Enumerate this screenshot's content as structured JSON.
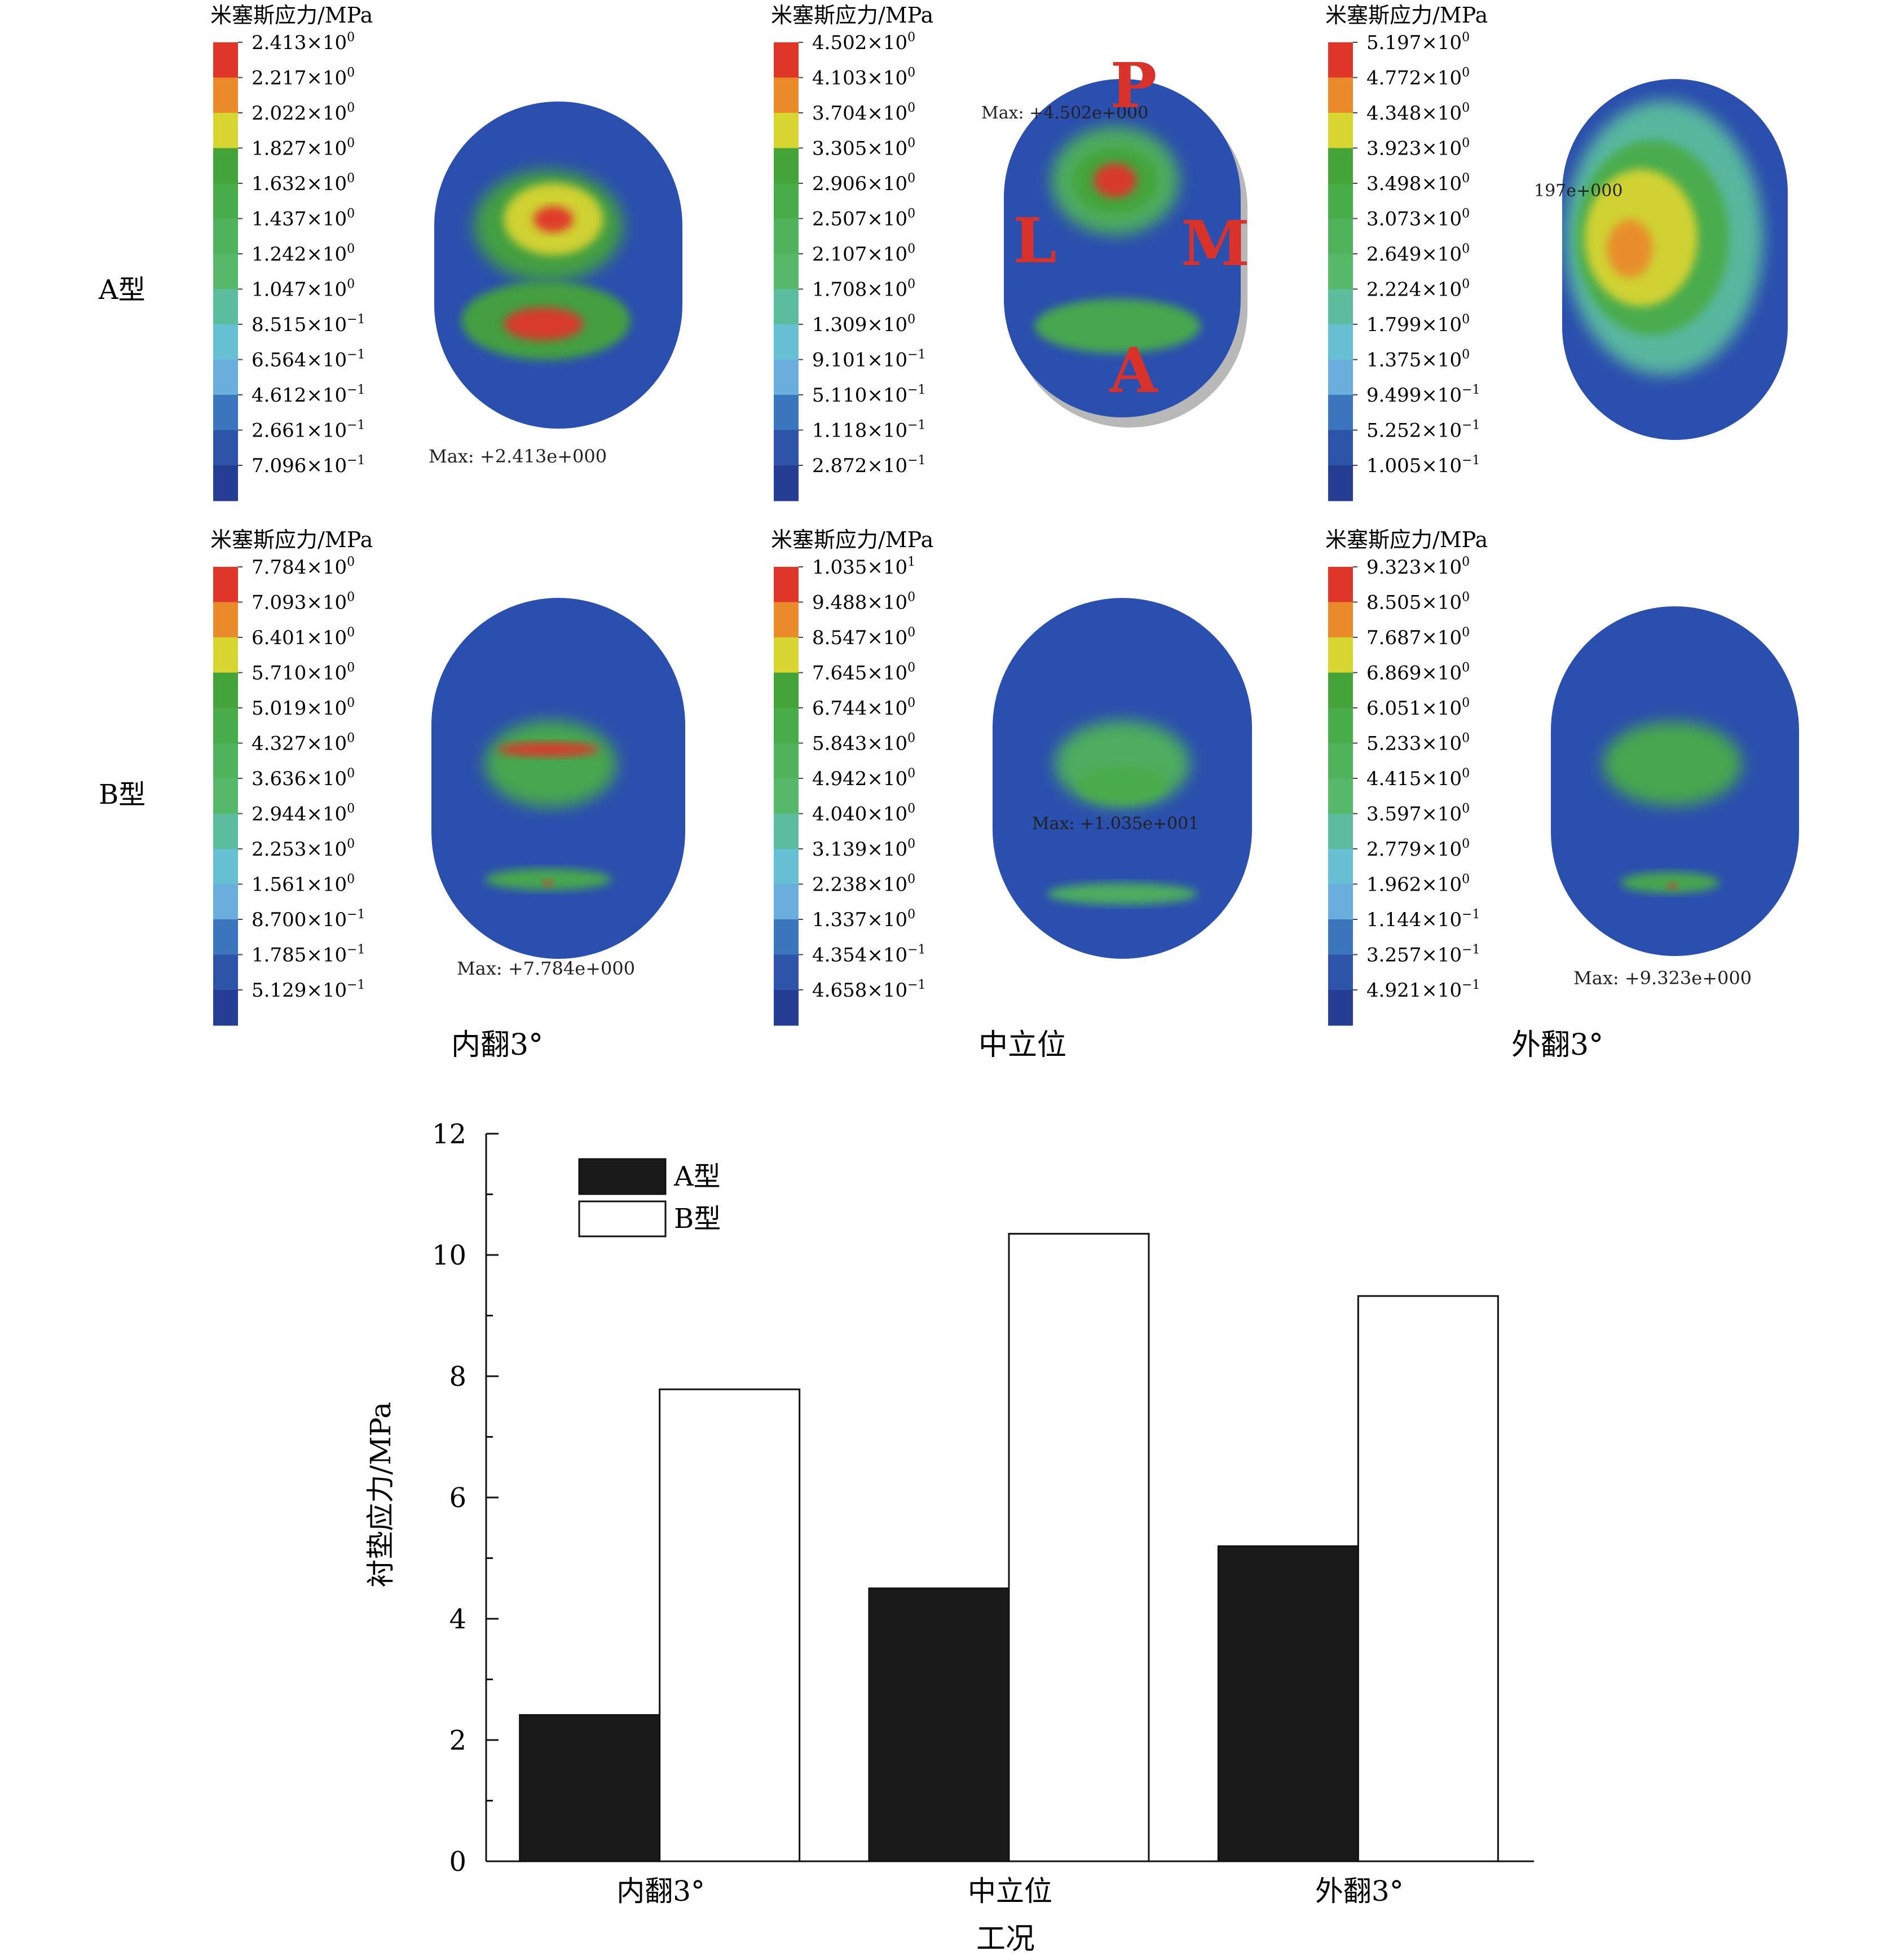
{
  "colors": {
    "scale": [
      "#e0362a",
      "#ea8a2a",
      "#d8d430",
      "#44a43a",
      "#48ac48",
      "#50b25a",
      "#58b86a",
      "#5cbd9e",
      "#66bfd2",
      "#6aaede",
      "#3a75bd",
      "#2d54a8",
      "#253e93"
    ],
    "bar_a": "#1a1a1a",
    "bar_b": "#ffffff",
    "fem_background": "#2b4fae"
  },
  "grid": {
    "row_labels": [
      "A型",
      "B型"
    ],
    "column_labels": [
      "内翻3°",
      "中立位",
      "外翻3°"
    ],
    "panels": [
      {
        "legend_title": "米塞斯应力/MPa",
        "ticks": [
          [
            "2.413",
            "0"
          ],
          [
            "2.217",
            "0"
          ],
          [
            "2.022",
            "0"
          ],
          [
            "1.827",
            "0"
          ],
          [
            "1.632",
            "0"
          ],
          [
            "1.437",
            "0"
          ],
          [
            "1.242",
            "0"
          ],
          [
            "1.047",
            "0"
          ],
          [
            "8.515",
            "−1"
          ],
          [
            "6.564",
            "−1"
          ],
          [
            "4.612",
            "−1"
          ],
          [
            "2.661",
            "−1"
          ],
          [
            "7.096",
            "−1"
          ]
        ],
        "annotations": [
          "Max: +2.413e+000"
        ]
      },
      {
        "legend_title": "米塞斯应力/MPa",
        "ticks": [
          [
            "4.502",
            "0"
          ],
          [
            "4.103",
            "0"
          ],
          [
            "3.704",
            "0"
          ],
          [
            "3.305",
            "0"
          ],
          [
            "2.906",
            "0"
          ],
          [
            "2.507",
            "0"
          ],
          [
            "2.107",
            "0"
          ],
          [
            "1.708",
            "0"
          ],
          [
            "1.309",
            "0"
          ],
          [
            "9.101",
            "−1"
          ],
          [
            "5.110",
            "−1"
          ],
          [
            "1.118",
            "−1"
          ],
          [
            "2.872",
            "−1"
          ]
        ],
        "annotations": [
          "Max: +4.502e+000",
          "P",
          "L",
          "M",
          "A"
        ]
      },
      {
        "legend_title": "米塞斯应力/MPa",
        "ticks": [
          [
            "5.197",
            "0"
          ],
          [
            "4.772",
            "0"
          ],
          [
            "4.348",
            "0"
          ],
          [
            "3.923",
            "0"
          ],
          [
            "3.498",
            "0"
          ],
          [
            "3.073",
            "0"
          ],
          [
            "2.649",
            "0"
          ],
          [
            "2.224",
            "0"
          ],
          [
            "1.799",
            "0"
          ],
          [
            "1.375",
            "0"
          ],
          [
            "9.499",
            "−1"
          ],
          [
            "5.252",
            "−1"
          ],
          [
            "1.005",
            "−1"
          ]
        ],
        "annotations": [
          "197e+000"
        ]
      },
      {
        "legend_title": "米塞斯应力/MPa",
        "ticks": [
          [
            "7.784",
            "0"
          ],
          [
            "7.093",
            "0"
          ],
          [
            "6.401",
            "0"
          ],
          [
            "5.710",
            "0"
          ],
          [
            "5.019",
            "0"
          ],
          [
            "4.327",
            "0"
          ],
          [
            "3.636",
            "0"
          ],
          [
            "2.944",
            "0"
          ],
          [
            "2.253",
            "0"
          ],
          [
            "1.561",
            "0"
          ],
          [
            "8.700",
            "−1"
          ],
          [
            "1.785",
            "−1"
          ],
          [
            "5.129",
            "−1"
          ]
        ],
        "annotations": [
          "Max: +7.784e+000"
        ]
      },
      {
        "legend_title": "米塞斯应力/MPa",
        "ticks": [
          [
            "1.035",
            "1"
          ],
          [
            "9.488",
            "0"
          ],
          [
            "8.547",
            "0"
          ],
          [
            "7.645",
            "0"
          ],
          [
            "6.744",
            "0"
          ],
          [
            "5.843",
            "0"
          ],
          [
            "4.942",
            "0"
          ],
          [
            "4.040",
            "0"
          ],
          [
            "3.139",
            "0"
          ],
          [
            "2.238",
            "0"
          ],
          [
            "1.337",
            "0"
          ],
          [
            "4.354",
            "−1"
          ],
          [
            "4.658",
            "−1"
          ]
        ],
        "annotations": [
          "Max: +1.035e+001"
        ]
      },
      {
        "legend_title": "米塞斯应力/MPa",
        "ticks": [
          [
            "9.323",
            "0"
          ],
          [
            "8.505",
            "0"
          ],
          [
            "7.687",
            "0"
          ],
          [
            "6.869",
            "0"
          ],
          [
            "6.051",
            "0"
          ],
          [
            "5.233",
            "0"
          ],
          [
            "4.415",
            "0"
          ],
          [
            "3.597",
            "0"
          ],
          [
            "2.779",
            "0"
          ],
          [
            "1.962",
            "0"
          ],
          [
            "1.144",
            "−1"
          ],
          [
            "3.257",
            "−1"
          ],
          [
            "4.921",
            "−1"
          ]
        ],
        "annotations": [
          "Max: +9.323e+000"
        ]
      }
    ]
  },
  "chart_data": {
    "type": "bar",
    "categories": [
      "内翻3°",
      "中立位",
      "外翻3°"
    ],
    "series": [
      {
        "name": "A型",
        "values": [
          2.413,
          4.502,
          5.197
        ]
      },
      {
        "name": "B型",
        "values": [
          7.784,
          10.35,
          9.323
        ]
      }
    ],
    "title": "",
    "xlabel": "工况",
    "ylabel": "衬垫应力/MPa",
    "ylim": [
      0,
      12
    ],
    "yticks": [
      0,
      2,
      4,
      6,
      8,
      10,
      12
    ],
    "legend_placement": "top-left",
    "grid": false
  }
}
